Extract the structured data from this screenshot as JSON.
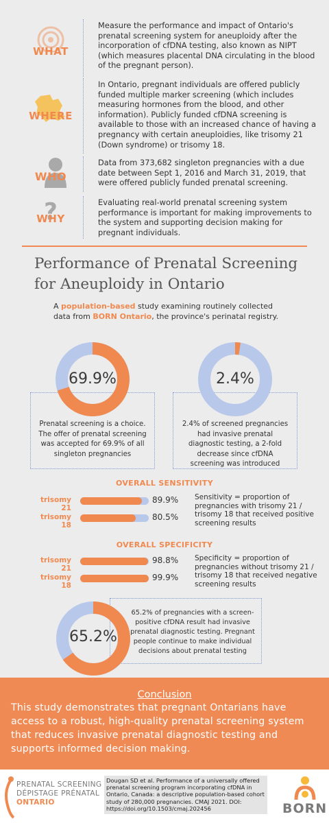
{
  "info": {
    "what": {
      "label": "WHAT",
      "text": "Measure the performance and impact of Ontario's prenatal screening system for aneuploidy after the incorporation of cfDNA testing, also known as NIPT (which measures placental DNA circulating in the blood of the pregnant person)."
    },
    "where": {
      "label": "WHERE",
      "text": "In Ontario, pregnant individuals are offered publicly funded multiple marker screening (which includes measuring hormones from the blood, and other information). Publicly funded cfDNA screening is available to those with an increased chance of having a pregnancy with certain aneuploidies, like trisomy 21 (Down syndrome) or trisomy 18."
    },
    "who": {
      "label": "WHO",
      "text": "Data from 373,682 singleton pregnancies with a due date between Sept 1, 2016 and March 31, 2019, that were offered publicly funded prenatal screening."
    },
    "why": {
      "label": "WHY",
      "text": "Evaluating real-world prenatal screening system performance is important for making improvements to the system and supporting decision making for pregnant individuals."
    }
  },
  "title": "Performance of Prenatal Screening for Aneuploidy in Ontario",
  "subtitle": {
    "part1": "A ",
    "highlight1": "population-based",
    "part2": " study examining routinely collected data from ",
    "highlight2": "BORN Ontario",
    "part3": ", the province's perinatal registry."
  },
  "stats": {
    "accepted": {
      "value": "69.9%",
      "fraction": 0.699,
      "text": "Prenatal screening is a choice. The offer of prenatal screening was accepted for 69.9% of all singleton pregnancies"
    },
    "invasive": {
      "value": "2.4%",
      "fraction": 0.024,
      "text": "2.4% of screened pregnancies had invasive prenatal diagnostic testing, a 2-fold decrease since cfDNA screening was introduced"
    },
    "screen_positive": {
      "value": "65.2%",
      "fraction": 0.652,
      "text": "65.2% of pregnancies with a screen-positive cfDNA result had invasive prenatal diagnostic testing. Pregnant people continue to make individual decisions about prenatal testing"
    }
  },
  "sensitivity": {
    "heading": "OVERALL SENSITIVITY",
    "rows": [
      {
        "label": "trisomy 21",
        "value": "89.9%",
        "fraction": 0.899
      },
      {
        "label": "trisomy 18",
        "value": "80.5%",
        "fraction": 0.805
      }
    ],
    "description": "Sensitivity = proportion of pregnancies with trisomy 21 / trisomy 18 that received positive screening results"
  },
  "specificity": {
    "heading": "OVERALL SPECIFICITY",
    "rows": [
      {
        "label": "trisomy 21",
        "value": "98.8%",
        "fraction": 0.988
      },
      {
        "label": "trisomy 18",
        "value": "99.9%",
        "fraction": 0.999
      }
    ],
    "description": "Specificity = proportion of pregnancies without trisomy 21 / trisomy 18 that received negative screening results"
  },
  "conclusion": {
    "heading": "Conclusion",
    "text": "This study demonstrates that pregnant Ontarians have access to a robust, high-quality prenatal screening system that reduces invasive prenatal diagnostic testing and supports informed decision making."
  },
  "footer": {
    "brand_line1": "PRENATAL SCREENING",
    "brand_line2": "DÉPISTAGE PRÉNATAL",
    "brand_line3": "ONTARIO",
    "citation": "Dougan SD et al. Performance of a universally offered prenatal screening program incorporating cfDNA in Ontario, Canada: a descriptive population-based cohort study of 280,000 pregnancies.  CMAJ 2021. DOI: https://doi.org/10.1503/cmaj.202456",
    "born_logo": "BORN"
  },
  "colors": {
    "accent": "#f0894f",
    "donut_track": "#b8c8ea",
    "divider": "#7e9ad0",
    "icon_grey": "#a9a9a9"
  }
}
